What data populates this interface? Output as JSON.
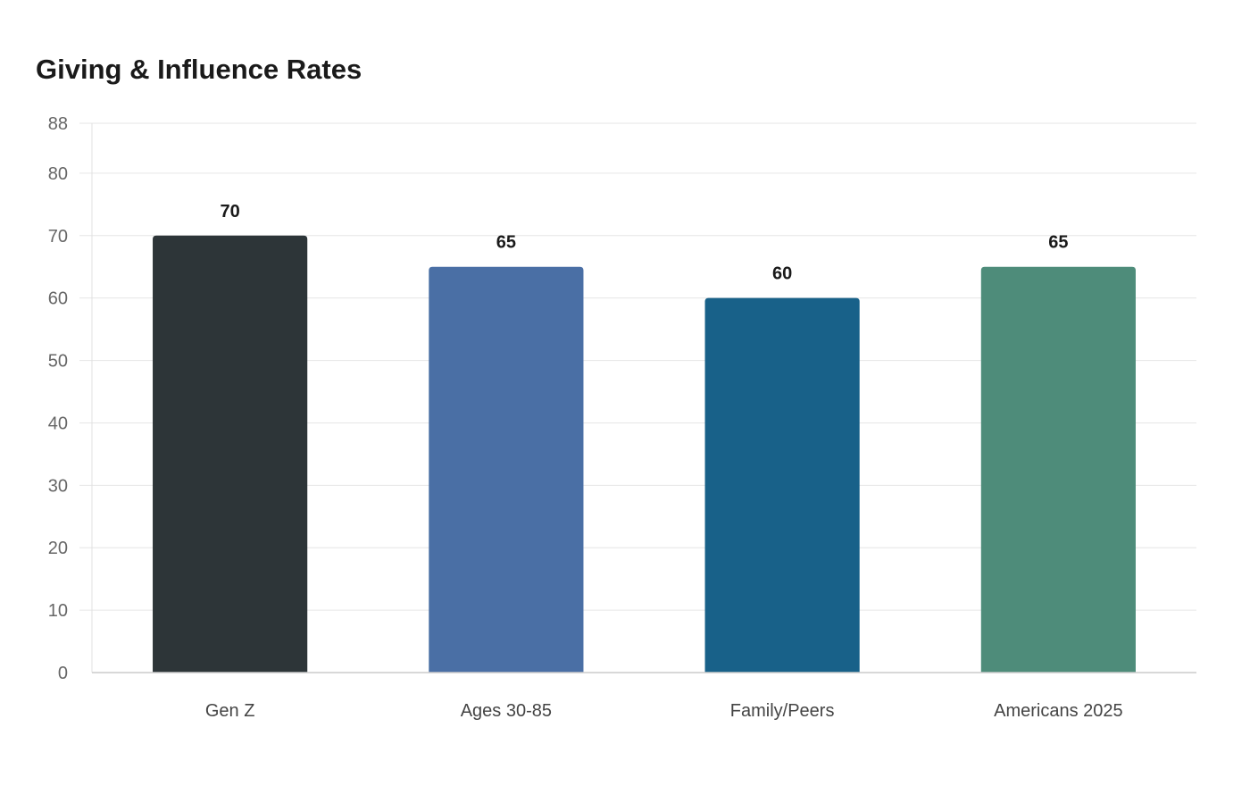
{
  "page": {
    "title": "Giving & Influence Rates"
  },
  "chart_data": {
    "type": "bar",
    "title": "Giving & Influence Rates",
    "categories": [
      "Gen Z",
      "Ages 30-85",
      "Family/Peers",
      "Americans 2025"
    ],
    "values": [
      70,
      65,
      60,
      65
    ],
    "data_labels": [
      "70",
      "65",
      "60",
      "65"
    ],
    "colors": [
      "#2d3538",
      "#4a6fa5",
      "#186189",
      "#4e8c7a"
    ],
    "xlabel": "",
    "ylabel": "",
    "ylim": [
      0,
      88
    ],
    "yticks": [
      0,
      10,
      20,
      30,
      40,
      50,
      60,
      70,
      80,
      88
    ],
    "grid": true,
    "legend": "none"
  }
}
